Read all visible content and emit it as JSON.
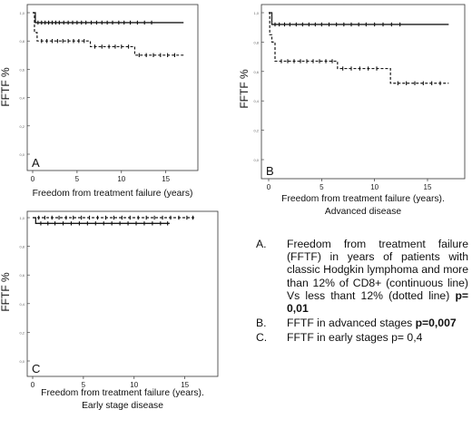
{
  "chart_data": [
    {
      "type": "line",
      "panel_letter": "A",
      "ylabel": "FFTF %",
      "xlabel": "Freedom from treatment failure (years)",
      "xlabel2": "",
      "xticks": [
        "0",
        "5",
        "10",
        "15"
      ],
      "yticks": [
        "0,0",
        "0,2",
        "0,4",
        "0,6",
        "0,8",
        "1,0"
      ],
      "xlim": [
        0,
        18
      ],
      "ylim": [
        0,
        1.0
      ],
      "series": [
        {
          "style": "solid",
          "steps": [
            [
              0,
              1.0
            ],
            [
              0.3,
              0.93
            ],
            [
              17,
              0.93
            ]
          ],
          "censor": [
            0.6,
            1.0,
            1.4,
            1.8,
            2.2,
            2.6,
            3.0,
            3.5,
            4.0,
            4.5,
            5.0,
            5.5,
            6.0,
            6.6,
            7.2,
            7.8,
            8.4,
            9.0,
            9.7,
            10.3,
            11.0,
            11.8,
            12.6,
            13.4
          ]
        },
        {
          "style": "dashed",
          "steps": [
            [
              0,
              1.0
            ],
            [
              0.2,
              0.86
            ],
            [
              0.5,
              0.8
            ],
            [
              6.5,
              0.76
            ],
            [
              11.5,
              0.7
            ],
            [
              17,
              0.7
            ]
          ],
          "censor": [
            1.0,
            1.6,
            2.2,
            2.8,
            3.4,
            4.0,
            4.6,
            5.2,
            5.8,
            7.0,
            7.8,
            8.6,
            9.3,
            10.0,
            10.8,
            12.0,
            12.8,
            13.6,
            14.4,
            15.2,
            16.0
          ]
        }
      ]
    },
    {
      "type": "line",
      "panel_letter": "B",
      "ylabel": "FFTF %",
      "xlabel": "Freedom from treatment failure (years).",
      "xlabel2": "Advanced disease",
      "xticks": [
        "0",
        "5",
        "10",
        "15"
      ],
      "yticks": [
        "0,0",
        "0,2",
        "0,4",
        "0,6",
        "0,8",
        "1,0"
      ],
      "xlim": [
        0,
        18
      ],
      "ylim": [
        0,
        1.0
      ],
      "series": [
        {
          "style": "solid",
          "steps": [
            [
              0,
              1.0
            ],
            [
              0.3,
              0.92
            ],
            [
              17,
              0.92
            ]
          ],
          "censor": [
            0.6,
            1.0,
            1.5,
            2.0,
            2.6,
            3.2,
            3.8,
            4.4,
            5.0,
            5.7,
            6.4,
            7.1,
            7.8,
            8.5,
            9.2,
            10.0,
            10.8,
            11.6,
            12.4
          ]
        },
        {
          "style": "dashed",
          "steps": [
            [
              0,
              1.0
            ],
            [
              0.1,
              0.85
            ],
            [
              0.3,
              0.8
            ],
            [
              0.6,
              0.67
            ],
            [
              6.5,
              0.62
            ],
            [
              11.5,
              0.52
            ],
            [
              17,
              0.52
            ]
          ],
          "censor": [
            1.2,
            1.8,
            2.4,
            3.0,
            3.6,
            4.2,
            4.8,
            5.4,
            6.0,
            7.0,
            7.8,
            8.6,
            9.4,
            10.2,
            12.2,
            13.0,
            13.8,
            14.6,
            15.4,
            16.2
          ]
        }
      ]
    },
    {
      "type": "line",
      "panel_letter": "C",
      "ylabel": "FFTF %",
      "xlabel": "Freedom from treatment failure (years).",
      "xlabel2": "Early stage disease",
      "xticks": [
        "0",
        "5",
        "10",
        "15"
      ],
      "yticks": [
        "0,0",
        "0,2",
        "0,4",
        "0,6",
        "0,8",
        "1,0"
      ],
      "xlim": [
        0,
        17
      ],
      "ylim": [
        0,
        1.0
      ],
      "series": [
        {
          "style": "dashed",
          "steps": [
            [
              0,
              1.0
            ],
            [
              16,
              1.0
            ]
          ],
          "censor": [
            0.6,
            1.2,
            1.9,
            2.6,
            3.3,
            4.0,
            4.8,
            5.6,
            6.4,
            7.2,
            8.0,
            8.8,
            9.6,
            10.4,
            11.2,
            12.0,
            12.8,
            13.6,
            14.4,
            15.2,
            15.8
          ]
        },
        {
          "style": "solid",
          "steps": [
            [
              0,
              1.0
            ],
            [
              0.3,
              0.96
            ],
            [
              13.5,
              0.96
            ]
          ],
          "censor": [
            0.8,
            1.5,
            2.2,
            3.0,
            3.8,
            4.6,
            5.4,
            6.2,
            7.0,
            7.8,
            8.6,
            9.4,
            10.2,
            11.0,
            11.8,
            12.6,
            13.3
          ]
        }
      ]
    }
  ],
  "caption": [
    {
      "letter": "A.",
      "text": "Freedom from treatment failure (FFTF) in years of patients with classic Hodgkin lymphoma and more than 12% of CD8+ (continuous line) Vs less thant 12% (dotted line) ",
      "bold": "p= 0,01"
    },
    {
      "letter": "B.",
      "text": "FFTF in advanced stages ",
      "bold": "p=0,007"
    },
    {
      "letter": "C.",
      "text": "FFTF in early stages p= 0,4",
      "bold": ""
    }
  ]
}
